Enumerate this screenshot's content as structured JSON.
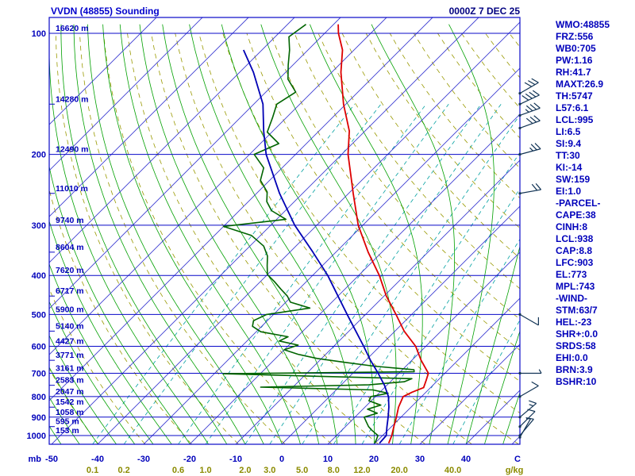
{
  "header": {
    "title": "VVDN (48855) Sounding",
    "datetime": "0000Z  7 DEC 25"
  },
  "stats_panel": {
    "lines": [
      "WMO:48855",
      "FRZ:556",
      "WB0:705",
      "PW:1.16",
      "RH:41.7",
      "MAXT:26.9",
      "TH:5747",
      "L57:6.1",
      "LCL:995",
      "LI:6.5",
      "SI:9.4",
      "TT:30",
      "KI:-14",
      "SW:159",
      "EI:1.0",
      "-PARCEL-",
      "CAPE:38",
      "CINH:8",
      "LCL:938",
      "CAP:8.8",
      "LFC:903",
      "EL:773",
      "MPL:743",
      "-WIND-",
      "STM:63/7",
      "HEL:-23",
      "SHR+:0.0",
      "SRDS:58",
      "EHI:0.0",
      "BRN:3.9",
      "BSHR:10"
    ]
  },
  "axes": {
    "pressure_unit": "mb",
    "temperature_unit": "C",
    "mixing_ratio_unit": "g/kg",
    "pressure_ticks": [
      100,
      200,
      300,
      400,
      500,
      600,
      700,
      800,
      900,
      1000
    ],
    "temperature_ticks": [
      -50,
      -40,
      -30,
      -20,
      -10,
      0,
      10,
      20,
      30,
      40
    ],
    "mixing_ratio_ticks": [
      0.1,
      0.2,
      0.6,
      1.0,
      2.0,
      3.0,
      5.0,
      8.0,
      12.0,
      20.0,
      40.0
    ],
    "height_labels_m": {
      "100": "16620 m",
      "150": "14280 m",
      "200": "12490 m",
      "250": "11010 m",
      "300": "9740 m",
      "350": "8604 m",
      "400": "7620 m",
      "450": "6717 m",
      "500": "5900 m",
      "550": "5140 m",
      "600": "4427 m",
      "650": "3771 m",
      "700": "3161 m",
      "750": "2583 m",
      "800": "2047 m",
      "850": "1542 m",
      "900": "1058 m",
      "950": "595 m",
      "1000": "153 m"
    }
  },
  "chart_data": {
    "type": "line",
    "subtype": "skewt-logp-sounding",
    "title": "VVDN (48855) Sounding",
    "x_axis": {
      "label": "C",
      "min": -50,
      "max": 52,
      "skew_deg": 45
    },
    "y_axis": {
      "label": "mb",
      "scale": "log",
      "top_mb": 91,
      "bottom_mb": 1050
    },
    "legend": "none",
    "series": [
      {
        "name": "temperature",
        "color": "#dd0000",
        "width": 1.8,
        "points": [
          [
            1045,
            23
          ],
          [
            1000,
            22
          ],
          [
            950,
            20.5
          ],
          [
            900,
            19
          ],
          [
            850,
            17.3
          ],
          [
            800,
            16
          ],
          [
            780,
            17
          ],
          [
            760,
            18.5
          ],
          [
            730,
            17.5
          ],
          [
            700,
            16.4
          ],
          [
            650,
            12
          ],
          [
            600,
            7.8
          ],
          [
            550,
            2
          ],
          [
            500,
            -3.4
          ],
          [
            450,
            -9.5
          ],
          [
            400,
            -15.5
          ],
          [
            350,
            -23
          ],
          [
            300,
            -31
          ],
          [
            250,
            -39
          ],
          [
            200,
            -48.6
          ],
          [
            175,
            -53.4
          ],
          [
            150,
            -60.5
          ],
          [
            125,
            -68
          ],
          [
            110,
            -72.5
          ],
          [
            100,
            -77
          ],
          [
            95,
            -79
          ]
        ]
      },
      {
        "name": "dewpoint",
        "color": "#006400",
        "width": 1.6,
        "points": [
          [
            1045,
            20
          ],
          [
            1000,
            19
          ],
          [
            970,
            16.5
          ],
          [
            950,
            15
          ],
          [
            925,
            13.5
          ],
          [
            900,
            12
          ],
          [
            880,
            14
          ],
          [
            860,
            11
          ],
          [
            840,
            13
          ],
          [
            820,
            9.5
          ],
          [
            800,
            9
          ],
          [
            785,
            12
          ],
          [
            770,
            8
          ],
          [
            758,
            -17
          ],
          [
            748,
            6
          ],
          [
            735,
            13
          ],
          [
            722,
            14
          ],
          [
            712,
            -8
          ],
          [
            702,
            -28
          ],
          [
            694,
            13
          ],
          [
            686,
            12.5
          ],
          [
            672,
            3
          ],
          [
            658,
            -4
          ],
          [
            643,
            -11
          ],
          [
            628,
            -16
          ],
          [
            612,
            -20
          ],
          [
            596,
            -18
          ],
          [
            582,
            -23
          ],
          [
            568,
            -22
          ],
          [
            552,
            -29
          ],
          [
            535,
            -32
          ],
          [
            518,
            -33
          ],
          [
            500,
            -31.5
          ],
          [
            482,
            -23.5
          ],
          [
            466,
            -29
          ],
          [
            450,
            -31
          ],
          [
            432,
            -34
          ],
          [
            414,
            -37
          ],
          [
            398,
            -40
          ],
          [
            378,
            -42
          ],
          [
            358,
            -44
          ],
          [
            338,
            -47
          ],
          [
            318,
            -52
          ],
          [
            302,
            -60
          ],
          [
            290,
            -48
          ],
          [
            276,
            -53
          ],
          [
            262,
            -56
          ],
          [
            248,
            -58
          ],
          [
            232,
            -62
          ],
          [
            216,
            -64
          ],
          [
            200,
            -69
          ],
          [
            188,
            -66
          ],
          [
            176,
            -71
          ],
          [
            162,
            -73
          ],
          [
            150,
            -75
          ],
          [
            140,
            -73.5
          ],
          [
            130,
            -78
          ],
          [
            120,
            -81
          ],
          [
            110,
            -84
          ],
          [
            102,
            -87
          ],
          [
            95,
            -86
          ]
        ]
      },
      {
        "name": "wetbulb",
        "color": "#0000b4",
        "width": 1.8,
        "points": [
          [
            1045,
            21
          ],
          [
            1000,
            20.8
          ],
          [
            950,
            19
          ],
          [
            900,
            17.2
          ],
          [
            850,
            15.2
          ],
          [
            800,
            12.8
          ],
          [
            750,
            9.5
          ],
          [
            700,
            5.5
          ],
          [
            650,
            1
          ],
          [
            600,
            -3.5
          ],
          [
            550,
            -8.5
          ],
          [
            500,
            -14
          ],
          [
            450,
            -20
          ],
          [
            400,
            -26.7
          ],
          [
            350,
            -35
          ],
          [
            300,
            -44.8
          ],
          [
            250,
            -55
          ],
          [
            200,
            -66.4
          ],
          [
            175,
            -72
          ],
          [
            150,
            -78
          ],
          [
            125,
            -87
          ],
          [
            110,
            -94
          ]
        ]
      }
    ],
    "wind_barbs": [
      {
        "p": 1010,
        "dir": 30,
        "spd": 5
      },
      {
        "p": 1000,
        "dir": 40,
        "spd": 10
      },
      {
        "p": 950,
        "dir": 45,
        "spd": 10
      },
      {
        "p": 900,
        "dir": 50,
        "spd": 15
      },
      {
        "p": 800,
        "dir": 60,
        "spd": 10
      },
      {
        "p": 700,
        "dir": 90,
        "spd": 5
      },
      {
        "p": 500,
        "dir": 120,
        "spd": 10
      },
      {
        "p": 250,
        "dir": 80,
        "spd": 20
      },
      {
        "p": 200,
        "dir": 75,
        "spd": 25
      },
      {
        "p": 172,
        "dir": 70,
        "spd": 30
      },
      {
        "p": 160,
        "dir": 70,
        "spd": 35
      },
      {
        "p": 150,
        "dir": 65,
        "spd": 40
      },
      {
        "p": 141,
        "dir": 60,
        "spd": 30
      }
    ],
    "grid": {
      "isotherm_step_c": 10,
      "moist_adiabat_start_c": {
        "min": -52,
        "max": 48,
        "step": 4
      },
      "dry_adiabat_theta_k": {
        "min": 230,
        "max": 450,
        "step": 10
      },
      "mixing_ratio_values": [
        0.1,
        0.2,
        0.6,
        1.0,
        2.0,
        3.0,
        5.0,
        8.0,
        12.0,
        20.0,
        40.0
      ]
    }
  },
  "colors": {
    "background": "#ffffff",
    "frame": "#0909c8",
    "isotherm": "#3c3cd2",
    "moist_adiabat": "#00a000",
    "dry_adiabat": "#999900",
    "mixing_ratio": "#00a0a0",
    "temperature_trace": "#dd0000",
    "dewpoint_trace": "#006400",
    "wetbulb_trace": "#0000b4",
    "barb": "#113355",
    "label_blue": "#0000bb",
    "label_olive": "#8b8b00",
    "title": "#0000cc",
    "datetime": "#000080",
    "stats_text": "#0000bb"
  }
}
